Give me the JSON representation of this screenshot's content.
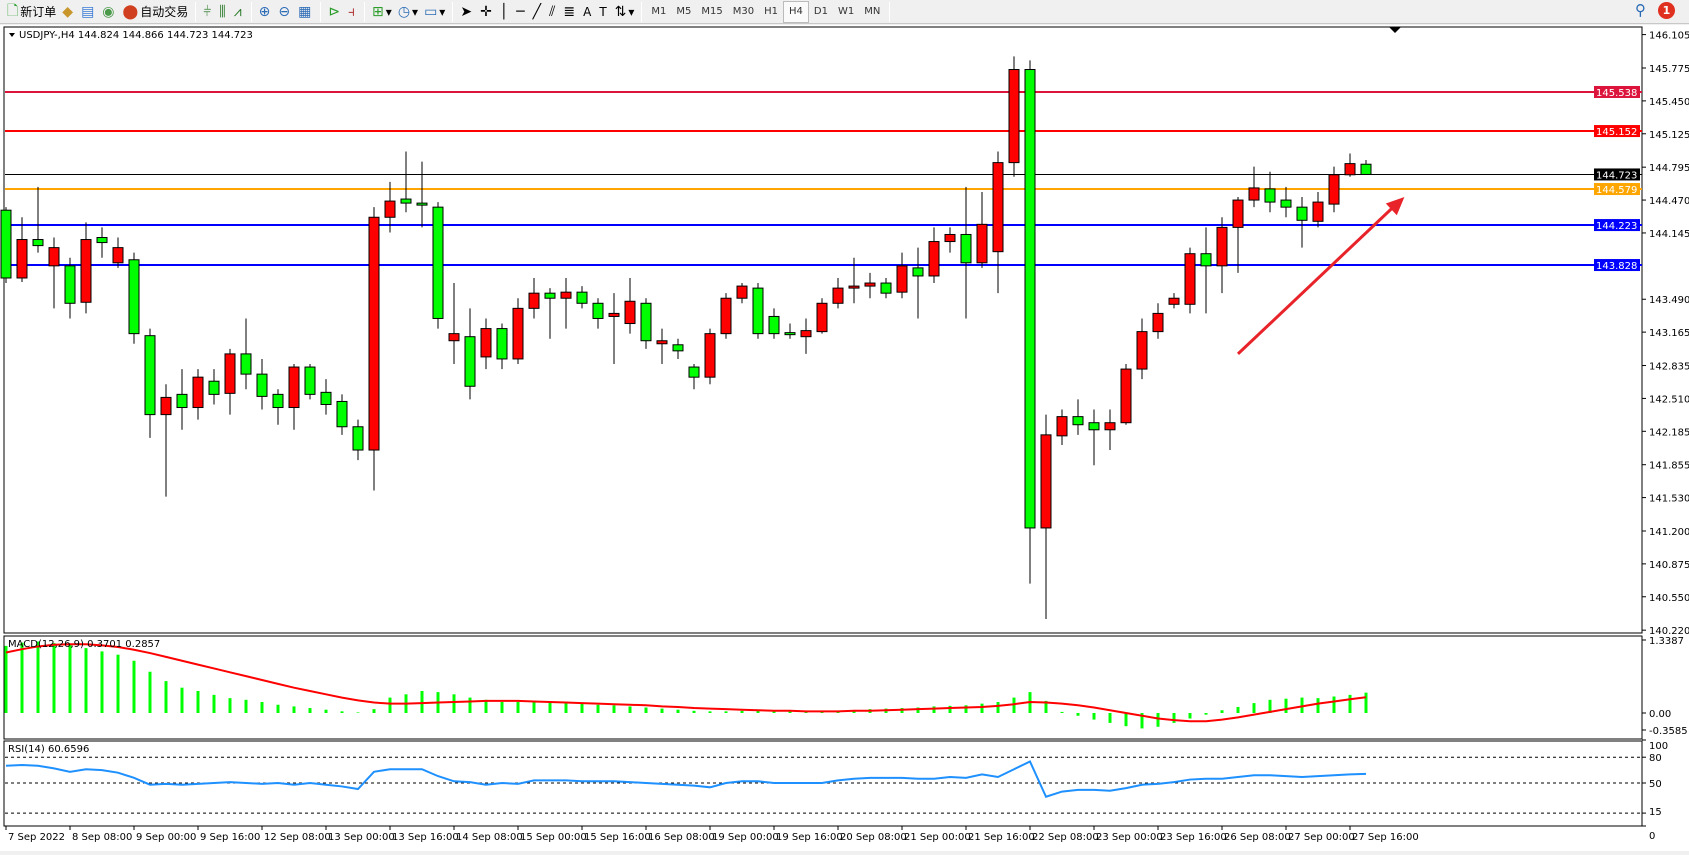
{
  "toolbar": {
    "new_order": "新订单",
    "auto_trading": "自动交易",
    "timeframes": [
      "M1",
      "M5",
      "M15",
      "M30",
      "H1",
      "H4",
      "D1",
      "W1",
      "MN"
    ],
    "active_timeframe": "H4",
    "notification_count": "1",
    "icons": [
      "new-order-icon",
      "gold-bars-icon",
      "history-center-icon",
      "signals-icon",
      "auto-trading-icon",
      "bar-chart-icon",
      "candlestick-icon",
      "line-chart-icon",
      "zoom-in-icon",
      "zoom-out-icon",
      "tile-windows-icon",
      "auto-scroll-icon",
      "chart-shift-icon",
      "indicators-icon",
      "periods-icon",
      "templates-icon",
      "cursor-icon",
      "crosshair-icon",
      "vertical-line-icon",
      "horizontal-line-icon",
      "trendline-icon",
      "fibonacci-icon",
      "fibonacci-fan-icon",
      "text-icon",
      "text-label-icon",
      "arrows-icon"
    ]
  },
  "chart_data": {
    "type": "candlestick",
    "title": "USDJPY-,H4  144.824 144.866 144.723 144.723",
    "symbol": "USDJPY-",
    "timeframe": "H4",
    "colors": {
      "bull": "#ff0000",
      "bear": "#00ff00",
      "outline": "#000000",
      "background": "#ffffff"
    },
    "ylim": [
      140.22,
      146.105
    ],
    "y_ticks": [
      "146.105",
      "145.775",
      "145.450",
      "145.125",
      "144.795",
      "144.470",
      "144.145",
      "143.490",
      "143.165",
      "142.835",
      "142.510",
      "142.185",
      "141.855",
      "141.530",
      "141.200",
      "140.875",
      "140.550",
      "140.220"
    ],
    "x_ticks": [
      {
        "index": 0,
        "label": "7 Sep 2022"
      },
      {
        "index": 4,
        "label": "8 Sep 08:00"
      },
      {
        "index": 8,
        "label": "9 Sep 00:00"
      },
      {
        "index": 12,
        "label": "9 Sep 16:00"
      },
      {
        "index": 16,
        "label": "12 Sep 08:00"
      },
      {
        "index": 20,
        "label": "13 Sep 00:00"
      },
      {
        "index": 24,
        "label": "13 Sep 16:00"
      },
      {
        "index": 28,
        "label": "14 Sep 08:00"
      },
      {
        "index": 32,
        "label": "15 Sep 00:00"
      },
      {
        "index": 36,
        "label": "15 Sep 16:00"
      },
      {
        "index": 40,
        "label": "16 Sep 08:00"
      },
      {
        "index": 44,
        "label": "19 Sep 00:00"
      },
      {
        "index": 48,
        "label": "19 Sep 16:00"
      },
      {
        "index": 52,
        "label": "20 Sep 08:00"
      },
      {
        "index": 56,
        "label": "21 Sep 00:00"
      },
      {
        "index": 60,
        "label": "21 Sep 16:00"
      },
      {
        "index": 64,
        "label": "22 Sep 08:00"
      },
      {
        "index": 68,
        "label": "23 Sep 00:00"
      },
      {
        "index": 72,
        "label": "23 Sep 16:00"
      },
      {
        "index": 76,
        "label": "26 Sep 08:00"
      },
      {
        "index": 80,
        "label": "27 Sep 00:00"
      },
      {
        "index": 84,
        "label": "27 Sep 16:00"
      }
    ],
    "ohlc": [
      [
        144.37,
        144.4,
        143.65,
        143.7
      ],
      [
        143.7,
        144.3,
        143.66,
        144.08
      ],
      [
        144.08,
        144.6,
        143.95,
        144.02
      ],
      [
        143.82,
        144.1,
        143.4,
        144.0
      ],
      [
        143.82,
        143.9,
        143.3,
        143.45
      ],
      [
        143.46,
        144.25,
        143.35,
        144.08
      ],
      [
        144.1,
        144.2,
        143.9,
        144.05
      ],
      [
        143.85,
        144.1,
        143.8,
        144.0
      ],
      [
        143.88,
        143.95,
        143.05,
        143.15
      ],
      [
        143.13,
        143.2,
        142.12,
        142.35
      ],
      [
        142.35,
        142.65,
        141.54,
        142.52
      ],
      [
        142.55,
        142.8,
        142.2,
        142.42
      ],
      [
        142.42,
        142.8,
        142.3,
        142.72
      ],
      [
        142.68,
        142.8,
        142.45,
        142.55
      ],
      [
        142.56,
        143.0,
        142.35,
        142.95
      ],
      [
        142.95,
        143.3,
        142.6,
        142.75
      ],
      [
        142.75,
        142.9,
        142.4,
        142.53
      ],
      [
        142.55,
        142.6,
        142.25,
        142.42
      ],
      [
        142.42,
        142.85,
        142.2,
        142.82
      ],
      [
        142.82,
        142.85,
        142.5,
        142.55
      ],
      [
        142.57,
        142.7,
        142.35,
        142.45
      ],
      [
        142.48,
        142.55,
        142.15,
        142.23
      ],
      [
        142.23,
        142.3,
        141.9,
        142.0
      ],
      [
        142.0,
        144.4,
        141.6,
        144.3
      ],
      [
        144.3,
        144.65,
        144.15,
        144.46
      ],
      [
        144.48,
        144.95,
        144.35,
        144.44
      ],
      [
        144.44,
        144.85,
        144.2,
        144.42
      ],
      [
        144.4,
        144.45,
        143.2,
        143.3
      ],
      [
        143.08,
        143.65,
        142.85,
        143.15
      ],
      [
        143.12,
        143.4,
        142.5,
        142.63
      ],
      [
        142.92,
        143.3,
        142.8,
        143.2
      ],
      [
        143.2,
        143.25,
        142.8,
        142.9
      ],
      [
        142.9,
        143.5,
        142.85,
        143.4
      ],
      [
        143.4,
        143.7,
        143.3,
        143.55
      ],
      [
        143.55,
        143.6,
        143.1,
        143.5
      ],
      [
        143.5,
        143.7,
        143.2,
        143.56
      ],
      [
        143.56,
        143.62,
        143.4,
        143.45
      ],
      [
        143.45,
        143.5,
        143.2,
        143.3
      ],
      [
        143.32,
        143.55,
        142.85,
        143.35
      ],
      [
        143.25,
        143.7,
        143.15,
        143.47
      ],
      [
        143.45,
        143.5,
        143.0,
        143.08
      ],
      [
        143.05,
        143.2,
        142.85,
        143.08
      ],
      [
        143.04,
        143.1,
        142.9,
        142.98
      ],
      [
        142.82,
        142.85,
        142.6,
        142.72
      ],
      [
        142.72,
        143.2,
        142.65,
        143.15
      ],
      [
        143.15,
        143.55,
        143.1,
        143.5
      ],
      [
        143.5,
        143.65,
        143.45,
        143.62
      ],
      [
        143.6,
        143.65,
        143.1,
        143.15
      ],
      [
        143.32,
        143.4,
        143.1,
        143.15
      ],
      [
        143.16,
        143.25,
        143.1,
        143.14
      ],
      [
        143.12,
        143.3,
        142.95,
        143.18
      ],
      [
        143.17,
        143.5,
        143.15,
        143.45
      ],
      [
        143.45,
        143.7,
        143.4,
        143.6
      ],
      [
        143.6,
        143.9,
        143.45,
        143.62
      ],
      [
        143.62,
        143.75,
        143.5,
        143.65
      ],
      [
        143.65,
        143.7,
        143.5,
        143.55
      ],
      [
        143.56,
        143.95,
        143.5,
        143.82
      ],
      [
        143.8,
        144.0,
        143.3,
        143.72
      ],
      [
        143.72,
        144.2,
        143.65,
        144.06
      ],
      [
        144.06,
        144.2,
        143.95,
        144.13
      ],
      [
        144.13,
        144.6,
        143.3,
        143.85
      ],
      [
        143.85,
        144.55,
        143.8,
        144.23
      ],
      [
        143.96,
        144.95,
        143.55,
        144.84
      ],
      [
        144.84,
        145.89,
        144.7,
        145.76
      ],
      [
        145.76,
        145.85,
        140.68,
        141.23
      ],
      [
        141.23,
        142.35,
        140.33,
        142.15
      ],
      [
        142.14,
        142.4,
        142.05,
        142.33
      ],
      [
        142.33,
        142.5,
        142.15,
        142.25
      ],
      [
        142.27,
        142.4,
        141.85,
        142.2
      ],
      [
        142.2,
        142.4,
        142.0,
        142.27
      ],
      [
        142.27,
        142.85,
        142.25,
        142.8
      ],
      [
        142.8,
        143.3,
        142.7,
        143.17
      ],
      [
        143.17,
        143.45,
        143.1,
        143.35
      ],
      [
        143.44,
        143.55,
        143.4,
        143.5
      ],
      [
        143.44,
        144.0,
        143.35,
        143.94
      ],
      [
        143.94,
        144.2,
        143.35,
        143.82
      ],
      [
        143.82,
        144.3,
        143.55,
        144.2
      ],
      [
        144.2,
        144.5,
        143.75,
        144.47
      ],
      [
        144.47,
        144.8,
        144.4,
        144.59
      ],
      [
        144.58,
        144.75,
        144.35,
        144.45
      ],
      [
        144.47,
        144.6,
        144.3,
        144.4
      ],
      [
        144.4,
        144.5,
        144.0,
        144.27
      ],
      [
        144.26,
        144.55,
        144.2,
        144.45
      ],
      [
        144.43,
        144.8,
        144.35,
        144.72
      ],
      [
        144.72,
        144.93,
        144.7,
        144.83
      ],
      [
        144.824,
        144.866,
        144.723,
        144.723
      ]
    ],
    "horizontal_lines": [
      {
        "price": 145.538,
        "label": "145.538",
        "color": "#dc143c"
      },
      {
        "price": 145.152,
        "label": "145.152",
        "color": "#ff0000"
      },
      {
        "price": 144.723,
        "label": "144.723",
        "color": "#000000"
      },
      {
        "price": 144.579,
        "label": "144.579",
        "color": "#ffa500"
      },
      {
        "price": 144.223,
        "label": "144.223",
        "color": "#0000ff"
      },
      {
        "price": 143.828,
        "label": "143.828",
        "color": "#0000ff"
      }
    ],
    "arrow": {
      "from": {
        "index": 77,
        "price": 142.95
      },
      "to": {
        "index": 87.4,
        "price": 144.5
      },
      "color": "#e8232a"
    },
    "macd": {
      "label": "MACD(12,26,9) 0.3701 0.2857",
      "y_ticks": [
        "1.3387",
        "0.00",
        "-0.3585"
      ],
      "hist_color": "#00ff00",
      "signal_color": "#ff0000",
      "histogram": [
        1.22,
        1.28,
        1.3,
        1.27,
        1.24,
        1.18,
        1.12,
        1.06,
        0.95,
        0.75,
        0.58,
        0.46,
        0.4,
        0.33,
        0.27,
        0.24,
        0.2,
        0.15,
        0.12,
        0.09,
        0.06,
        0.03,
        0.01,
        0.07,
        0.28,
        0.34,
        0.4,
        0.38,
        0.34,
        0.28,
        0.24,
        0.2,
        0.2,
        0.21,
        0.2,
        0.18,
        0.17,
        0.15,
        0.14,
        0.12,
        0.1,
        0.08,
        0.06,
        0.04,
        0.03,
        0.03,
        0.04,
        0.05,
        0.04,
        0.03,
        0.02,
        0.02,
        0.03,
        0.05,
        0.07,
        0.08,
        0.09,
        0.1,
        0.12,
        0.13,
        0.14,
        0.17,
        0.2,
        0.28,
        0.38,
        0.22,
        0.02,
        -0.05,
        -0.12,
        -0.18,
        -0.24,
        -0.28,
        -0.25,
        -0.18,
        -0.1,
        -0.03,
        0.05,
        0.11,
        0.18,
        0.24,
        0.26,
        0.28,
        0.27,
        0.3,
        0.33,
        0.3701
      ],
      "signal": [
        1.1,
        1.16,
        1.21,
        1.24,
        1.25,
        1.25,
        1.23,
        1.2,
        1.15,
        1.09,
        1.02,
        0.95,
        0.88,
        0.81,
        0.74,
        0.67,
        0.6,
        0.53,
        0.46,
        0.4,
        0.34,
        0.28,
        0.23,
        0.19,
        0.17,
        0.17,
        0.18,
        0.19,
        0.2,
        0.21,
        0.22,
        0.22,
        0.22,
        0.21,
        0.2,
        0.19,
        0.18,
        0.17,
        0.16,
        0.15,
        0.14,
        0.12,
        0.11,
        0.09,
        0.08,
        0.07,
        0.06,
        0.05,
        0.04,
        0.04,
        0.03,
        0.03,
        0.03,
        0.04,
        0.04,
        0.05,
        0.06,
        0.07,
        0.08,
        0.09,
        0.1,
        0.11,
        0.13,
        0.16,
        0.2,
        0.19,
        0.17,
        0.14,
        0.1,
        0.05,
        0.0,
        -0.05,
        -0.1,
        -0.13,
        -0.15,
        -0.15,
        -0.12,
        -0.08,
        -0.03,
        0.02,
        0.07,
        0.12,
        0.17,
        0.21,
        0.25,
        0.2857
      ]
    },
    "rsi": {
      "label": "RSI(14) 60.6596",
      "levels": [
        80,
        50,
        15
      ],
      "y_ticks": [
        "100",
        "80",
        "50",
        "15",
        "0"
      ],
      "color": "#1e90ff",
      "values": [
        70,
        71,
        70,
        67,
        63,
        66,
        65,
        62,
        56,
        48,
        49,
        48,
        49,
        50,
        51,
        50,
        49,
        50,
        48,
        50,
        48,
        46,
        43,
        63,
        66,
        66,
        66,
        58,
        52,
        51,
        48,
        50,
        49,
        53,
        53,
        53,
        52,
        52,
        52,
        51,
        50,
        49,
        48,
        47,
        45,
        50,
        52,
        52,
        50,
        50,
        50,
        50,
        53,
        55,
        56,
        56,
        56,
        55,
        55,
        57,
        56,
        60,
        57,
        66,
        75,
        34,
        40,
        42,
        42,
        41,
        44,
        48,
        49,
        51,
        54,
        55,
        55,
        57,
        59,
        59,
        58,
        57,
        58,
        59,
        60,
        60.6596
      ]
    }
  }
}
